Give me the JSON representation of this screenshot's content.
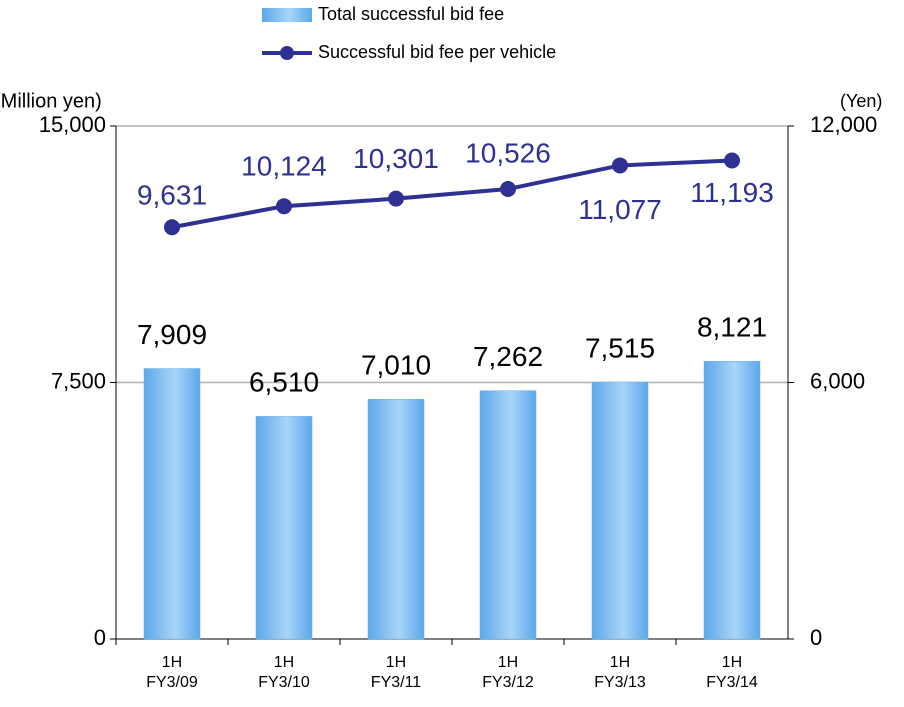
{
  "chart_data": {
    "type": "bar_line",
    "categories": [
      [
        "1H",
        "FY3/09"
      ],
      [
        "1H",
        "FY3/10"
      ],
      [
        "1H",
        "FY3/11"
      ],
      [
        "1H",
        "FY3/12"
      ],
      [
        "1H",
        "FY3/13"
      ],
      [
        "1H",
        "FY3/14"
      ]
    ],
    "series": [
      {
        "name": "Total successful bid fee",
        "type": "bar",
        "color": "#6cb4ee",
        "values": [
          7909,
          6510,
          7010,
          7262,
          7515,
          8121
        ],
        "value_labels": [
          "7,909",
          "6,510",
          "7,010",
          "7,262",
          "7,515",
          "8,121"
        ]
      },
      {
        "name": "Successful bid fee per vehicle",
        "type": "line",
        "axis": "y2",
        "color": "#2e3192",
        "values": [
          9631,
          10124,
          10301,
          10526,
          11077,
          11193
        ],
        "value_labels": [
          "9,631",
          "10,124",
          "10,301",
          "10,526",
          "11,077",
          "11,193"
        ]
      }
    ],
    "y_label": "(Million yen)",
    "y2_label": "(Yen)",
    "ylim": [
      0,
      15000
    ],
    "yticks": [
      0,
      {
        "value": 7500,
        "label": "7,500"
      },
      {
        "value": 15000,
        "label": "15,000"
      }
    ],
    "y2lim": [
      0,
      12000
    ],
    "y2ticks": [
      0,
      {
        "value": 6000,
        "label": "6,000"
      },
      {
        "value": 12000,
        "label": "12,000"
      }
    ],
    "grid": true
  }
}
